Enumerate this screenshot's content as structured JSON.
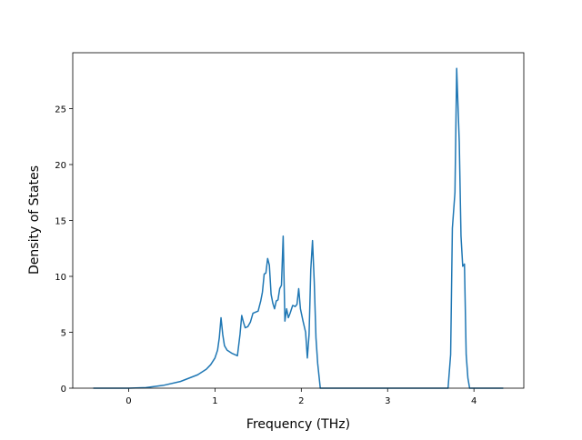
{
  "chart_data": {
    "type": "line",
    "x_label": "Frequency (THz)",
    "y_label": "Density of States",
    "x": [
      -0.41,
      0,
      0.2,
      0.4,
      0.6,
      0.8,
      0.9,
      0.95,
      1.0,
      1.03,
      1.05,
      1.07,
      1.09,
      1.11,
      1.14,
      1.2,
      1.26,
      1.29,
      1.31,
      1.33,
      1.35,
      1.38,
      1.41,
      1.44,
      1.5,
      1.53,
      1.55,
      1.57,
      1.59,
      1.61,
      1.63,
      1.65,
      1.67,
      1.69,
      1.71,
      1.73,
      1.75,
      1.77,
      1.79,
      1.81,
      1.83,
      1.85,
      1.87,
      1.9,
      1.93,
      1.95,
      1.97,
      1.99,
      2.02,
      2.05,
      2.07,
      2.09,
      2.11,
      2.13,
      2.15,
      2.17,
      2.19,
      2.22,
      3.7,
      3.73,
      3.75,
      3.78,
      3.8,
      3.83,
      3.85,
      3.87,
      3.89,
      3.91,
      3.93,
      3.95,
      4.34
    ],
    "values": [
      0,
      0,
      0.05,
      0.25,
      0.6,
      1.2,
      1.7,
      2.1,
      2.7,
      3.4,
      4.5,
      6.3,
      4.8,
      3.8,
      3.4,
      3.1,
      2.9,
      4.8,
      6.5,
      5.9,
      5.4,
      5.5,
      5.9,
      6.7,
      6.9,
      7.8,
      8.6,
      10.2,
      10.3,
      11.6,
      11.0,
      8.4,
      7.6,
      7.1,
      7.8,
      7.9,
      8.9,
      9.2,
      13.6,
      6.0,
      7.1,
      6.3,
      6.7,
      7.4,
      7.3,
      7.5,
      8.9,
      7.1,
      6.0,
      5.0,
      2.7,
      4.8,
      10.6,
      13.2,
      9.5,
      4.5,
      2.2,
      0,
      0,
      3.0,
      14.3,
      17.5,
      28.6,
      22.0,
      13.6,
      10.9,
      11.1,
      3.0,
      0.9,
      0,
      0
    ],
    "color": "#1f77b4",
    "xlim": [
      -0.6475,
      4.5775
    ],
    "xticks": [
      0,
      1,
      2,
      3,
      4
    ],
    "ylim": [
      0,
      30.0
    ],
    "yticks": [
      0,
      5,
      10,
      15,
      20,
      25
    ]
  }
}
